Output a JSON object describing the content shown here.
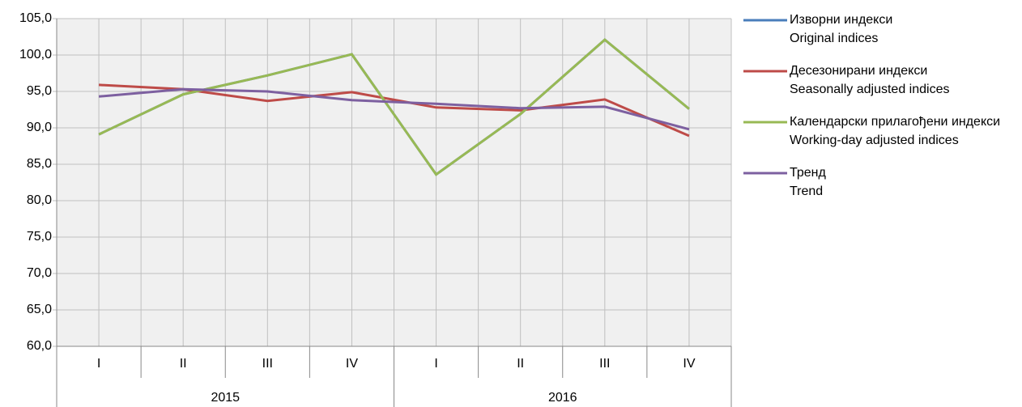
{
  "chart_data": {
    "type": "line",
    "categories": [
      "I",
      "II",
      "III",
      "IV",
      "I",
      "II",
      "III",
      "IV"
    ],
    "groups": [
      "2015",
      "2016"
    ],
    "series": [
      {
        "name": [
          "Изворни индекси",
          "Original indices"
        ],
        "color": "#4a7ebb",
        "values": [
          89.1,
          94.6,
          97.2,
          100.1,
          83.6,
          91.9,
          102.1,
          92.6
        ]
      },
      {
        "name": [
          "Десезонирани индекси",
          "Seasonally adjusted indices"
        ],
        "color": "#be4b48",
        "values": [
          95.9,
          95.3,
          93.7,
          94.9,
          92.8,
          92.4,
          93.9,
          88.9
        ]
      },
      {
        "name": [
          "Календарски прилагођени индекси",
          "Working-day adjusted indices"
        ],
        "color": "#98b954",
        "values": [
          89.1,
          94.6,
          97.2,
          100.1,
          83.6,
          91.9,
          102.1,
          92.6
        ]
      },
      {
        "name": [
          "Тренд",
          "Trend"
        ],
        "color": "#7d60a0",
        "values": [
          94.3,
          95.3,
          95.0,
          93.8,
          93.3,
          92.7,
          92.9,
          89.8
        ]
      }
    ],
    "ylim": [
      60,
      105
    ],
    "yticks": [
      {
        "value": 60,
        "label": "60,0"
      },
      {
        "value": 65,
        "label": "65,0"
      },
      {
        "value": 70,
        "label": "70,0"
      },
      {
        "value": 75,
        "label": "75,0"
      },
      {
        "value": 80,
        "label": "80,0"
      },
      {
        "value": 85,
        "label": "85,0"
      },
      {
        "value": 90,
        "label": "90,0"
      },
      {
        "value": 95,
        "label": "95,0"
      },
      {
        "value": 100,
        "label": "100,0"
      },
      {
        "value": 105,
        "label": "105,0"
      }
    ],
    "grid": true
  }
}
